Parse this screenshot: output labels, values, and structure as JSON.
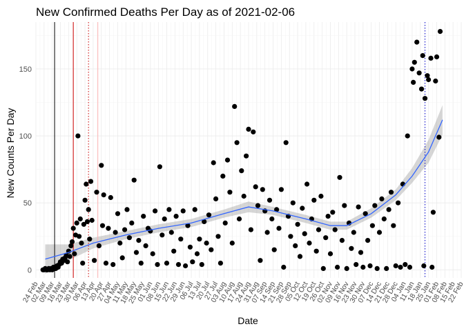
{
  "chart_data": {
    "type": "scatter",
    "title": "New Confirmed Deaths Per Day as of 2021-02-06",
    "xlabel": "Date",
    "ylabel": "New Counts Per Day",
    "x_range": [
      "2020-02-24",
      "2021-02-22"
    ],
    "ylim": [
      -6,
      185
    ],
    "yticks": [
      0,
      50,
      100,
      150
    ],
    "xtick_labels": [
      "24 Feb",
      "02 Mar",
      "09 Mar",
      "16 Mar",
      "23 Mar",
      "30 Mar",
      "06 Apr",
      "13 Apr",
      "20 Apr",
      "27 Apr",
      "04 May",
      "11 May",
      "18 May",
      "25 May",
      "01 Jun",
      "08 Jun",
      "15 Jun",
      "22 Jun",
      "29 Jun",
      "06 Jul",
      "13 Jul",
      "20 Jul",
      "27 Jul",
      "03 Aug",
      "10 Aug",
      "17 Aug",
      "24 Aug",
      "31 Aug",
      "07 Sep",
      "14 Sep",
      "21 Sep",
      "28 Sep",
      "05 Oct",
      "12 Oct",
      "19 Oct",
      "26 Oct",
      "02 Nov",
      "09 Nov",
      "16 Nov",
      "23 Nov",
      "30 Nov",
      "07 Dec",
      "14 Dec",
      "21 Dec",
      "28 Dec",
      "04 Jan",
      "11 Jan",
      "18 Jan",
      "25 Jan",
      "01 Feb",
      "08 Feb",
      "15 Feb",
      "22 Feb"
    ],
    "grid": true,
    "legend": "none",
    "point_color": "#000000",
    "smooth_color": "#3366ff",
    "band_color": "#999999",
    "vertical_lines": [
      {
        "date": "2020-03-11",
        "color": "#000000",
        "style": "solid"
      },
      {
        "date": "2020-03-27",
        "color": "#cc0000",
        "style": "solid"
      },
      {
        "date": "2020-04-09",
        "color": "#cc0000",
        "style": "dotted"
      },
      {
        "date": "2020-04-17",
        "color": "#ffb3b3",
        "style": "solid"
      },
      {
        "date": "2021-01-22",
        "color": "#0000cc",
        "style": "dotted"
      }
    ],
    "smooth": [
      {
        "x": "2020-03-03",
        "y": 8,
        "lo": -3,
        "hi": 19
      },
      {
        "x": "2020-03-23",
        "y": 13,
        "lo": 7,
        "hi": 19
      },
      {
        "x": "2020-04-13",
        "y": 20,
        "lo": 16,
        "hi": 24
      },
      {
        "x": "2020-05-11",
        "y": 26,
        "lo": 23,
        "hi": 29
      },
      {
        "x": "2020-06-08",
        "y": 31,
        "lo": 28,
        "hi": 34
      },
      {
        "x": "2020-07-06",
        "y": 35,
        "lo": 32,
        "hi": 38
      },
      {
        "x": "2020-08-03",
        "y": 42,
        "lo": 39,
        "hi": 45
      },
      {
        "x": "2020-08-24",
        "y": 47,
        "lo": 43,
        "hi": 51
      },
      {
        "x": "2020-09-14",
        "y": 44,
        "lo": 41,
        "hi": 47
      },
      {
        "x": "2020-10-12",
        "y": 38,
        "lo": 35,
        "hi": 41
      },
      {
        "x": "2020-11-02",
        "y": 33,
        "lo": 30,
        "hi": 36
      },
      {
        "x": "2020-11-16",
        "y": 33,
        "lo": 30,
        "hi": 36
      },
      {
        "x": "2020-12-07",
        "y": 42,
        "lo": 39,
        "hi": 46
      },
      {
        "x": "2020-12-28",
        "y": 56,
        "lo": 52,
        "hi": 60
      },
      {
        "x": "2021-01-11",
        "y": 70,
        "lo": 65,
        "hi": 76
      },
      {
        "x": "2021-01-25",
        "y": 88,
        "lo": 80,
        "hi": 97
      },
      {
        "x": "2021-02-06",
        "y": 112,
        "lo": 101,
        "hi": 123
      }
    ],
    "points": [
      {
        "x": "2020-03-01",
        "y": 0
      },
      {
        "x": "2020-03-02",
        "y": 0
      },
      {
        "x": "2020-03-03",
        "y": 1
      },
      {
        "x": "2020-03-04",
        "y": 0
      },
      {
        "x": "2020-03-05",
        "y": 0
      },
      {
        "x": "2020-03-06",
        "y": 1
      },
      {
        "x": "2020-03-07",
        "y": 0
      },
      {
        "x": "2020-03-08",
        "y": 1
      },
      {
        "x": "2020-03-09",
        "y": 0
      },
      {
        "x": "2020-03-10",
        "y": 2
      },
      {
        "x": "2020-03-11",
        "y": 1
      },
      {
        "x": "2020-03-12",
        "y": 1
      },
      {
        "x": "2020-03-13",
        "y": 3
      },
      {
        "x": "2020-03-14",
        "y": 2
      },
      {
        "x": "2020-03-15",
        "y": 4
      },
      {
        "x": "2020-03-16",
        "y": 6
      },
      {
        "x": "2020-03-17",
        "y": 5
      },
      {
        "x": "2020-03-18",
        "y": 8
      },
      {
        "x": "2020-03-19",
        "y": 7
      },
      {
        "x": "2020-03-20",
        "y": 9
      },
      {
        "x": "2020-03-21",
        "y": 11
      },
      {
        "x": "2020-03-22",
        "y": 6
      },
      {
        "x": "2020-03-23",
        "y": 14
      },
      {
        "x": "2020-03-24",
        "y": 10
      },
      {
        "x": "2020-03-25",
        "y": 18
      },
      {
        "x": "2020-03-26",
        "y": 21
      },
      {
        "x": "2020-03-27",
        "y": 31
      },
      {
        "x": "2020-03-28",
        "y": 12
      },
      {
        "x": "2020-03-29",
        "y": 26
      },
      {
        "x": "2020-03-30",
        "y": 35
      },
      {
        "x": "2020-03-31",
        "y": 100
      },
      {
        "x": "2020-04-01",
        "y": 25
      },
      {
        "x": "2020-04-02",
        "y": 38
      },
      {
        "x": "2020-04-03",
        "y": 20
      },
      {
        "x": "2020-04-04",
        "y": 5
      },
      {
        "x": "2020-04-05",
        "y": 34
      },
      {
        "x": "2020-04-06",
        "y": 52
      },
      {
        "x": "2020-04-07",
        "y": 64
      },
      {
        "x": "2020-04-08",
        "y": 36
      },
      {
        "x": "2020-04-09",
        "y": 45
      },
      {
        "x": "2020-04-10",
        "y": 23
      },
      {
        "x": "2020-04-11",
        "y": 66
      },
      {
        "x": "2020-04-12",
        "y": 37
      },
      {
        "x": "2020-04-14",
        "y": 7
      },
      {
        "x": "2020-04-16",
        "y": 58
      },
      {
        "x": "2020-04-18",
        "y": 18
      },
      {
        "x": "2020-04-20",
        "y": 78
      },
      {
        "x": "2020-04-21",
        "y": 33
      },
      {
        "x": "2020-04-22",
        "y": 56
      },
      {
        "x": "2020-04-24",
        "y": 5
      },
      {
        "x": "2020-04-26",
        "y": 31
      },
      {
        "x": "2020-04-28",
        "y": 54
      },
      {
        "x": "2020-04-30",
        "y": 4
      },
      {
        "x": "2020-05-02",
        "y": 28
      },
      {
        "x": "2020-05-04",
        "y": 42
      },
      {
        "x": "2020-05-06",
        "y": 20
      },
      {
        "x": "2020-05-08",
        "y": 9
      },
      {
        "x": "2020-05-10",
        "y": 30
      },
      {
        "x": "2020-05-12",
        "y": 45
      },
      {
        "x": "2020-05-14",
        "y": 24
      },
      {
        "x": "2020-05-16",
        "y": 35
      },
      {
        "x": "2020-05-18",
        "y": 67
      },
      {
        "x": "2020-05-20",
        "y": 13
      },
      {
        "x": "2020-05-22",
        "y": 22
      },
      {
        "x": "2020-05-24",
        "y": 5
      },
      {
        "x": "2020-05-26",
        "y": 40
      },
      {
        "x": "2020-05-28",
        "y": 18
      },
      {
        "x": "2020-05-30",
        "y": 31
      },
      {
        "x": "2020-06-01",
        "y": 29
      },
      {
        "x": "2020-06-03",
        "y": 12
      },
      {
        "x": "2020-06-05",
        "y": 44
      },
      {
        "x": "2020-06-07",
        "y": 4
      },
      {
        "x": "2020-06-09",
        "y": 77
      },
      {
        "x": "2020-06-11",
        "y": 26
      },
      {
        "x": "2020-06-13",
        "y": 38
      },
      {
        "x": "2020-06-15",
        "y": 5
      },
      {
        "x": "2020-06-17",
        "y": 45
      },
      {
        "x": "2020-06-19",
        "y": 28
      },
      {
        "x": "2020-06-21",
        "y": 14
      },
      {
        "x": "2020-06-23",
        "y": 40
      },
      {
        "x": "2020-06-25",
        "y": 4
      },
      {
        "x": "2020-06-27",
        "y": 23
      },
      {
        "x": "2020-06-29",
        "y": 44
      },
      {
        "x": "2020-07-01",
        "y": 3
      },
      {
        "x": "2020-07-03",
        "y": 33
      },
      {
        "x": "2020-07-05",
        "y": 17
      },
      {
        "x": "2020-07-07",
        "y": 6
      },
      {
        "x": "2020-07-09",
        "y": 45
      },
      {
        "x": "2020-07-11",
        "y": 12
      },
      {
        "x": "2020-07-13",
        "y": 23
      },
      {
        "x": "2020-07-15",
        "y": 4
      },
      {
        "x": "2020-07-17",
        "y": 36
      },
      {
        "x": "2020-07-19",
        "y": 20
      },
      {
        "x": "2020-07-21",
        "y": 41
      },
      {
        "x": "2020-07-23",
        "y": 15
      },
      {
        "x": "2020-07-25",
        "y": 80
      },
      {
        "x": "2020-07-27",
        "y": 53
      },
      {
        "x": "2020-07-29",
        "y": 25
      },
      {
        "x": "2020-07-31",
        "y": 5
      },
      {
        "x": "2020-08-02",
        "y": 70
      },
      {
        "x": "2020-08-04",
        "y": 35
      },
      {
        "x": "2020-08-06",
        "y": 82
      },
      {
        "x": "2020-08-08",
        "y": 58
      },
      {
        "x": "2020-08-10",
        "y": 20
      },
      {
        "x": "2020-08-12",
        "y": 122
      },
      {
        "x": "2020-08-14",
        "y": 95
      },
      {
        "x": "2020-08-16",
        "y": 38
      },
      {
        "x": "2020-08-18",
        "y": 74
      },
      {
        "x": "2020-08-20",
        "y": 55
      },
      {
        "x": "2020-08-22",
        "y": 85
      },
      {
        "x": "2020-08-24",
        "y": 105
      },
      {
        "x": "2020-08-26",
        "y": 30
      },
      {
        "x": "2020-08-28",
        "y": 103
      },
      {
        "x": "2020-08-30",
        "y": 62
      },
      {
        "x": "2020-09-01",
        "y": 48
      },
      {
        "x": "2020-09-03",
        "y": 7
      },
      {
        "x": "2020-09-05",
        "y": 60
      },
      {
        "x": "2020-09-07",
        "y": 44
      },
      {
        "x": "2020-09-09",
        "y": 28
      },
      {
        "x": "2020-09-11",
        "y": 52
      },
      {
        "x": "2020-09-13",
        "y": 38
      },
      {
        "x": "2020-09-15",
        "y": 15
      },
      {
        "x": "2020-09-17",
        "y": 45
      },
      {
        "x": "2020-09-19",
        "y": 31
      },
      {
        "x": "2020-09-21",
        "y": 60
      },
      {
        "x": "2020-09-23",
        "y": 2
      },
      {
        "x": "2020-09-25",
        "y": 95
      },
      {
        "x": "2020-09-27",
        "y": 40
      },
      {
        "x": "2020-09-29",
        "y": 25
      },
      {
        "x": "2020-10-01",
        "y": 50
      },
      {
        "x": "2020-10-03",
        "y": 18
      },
      {
        "x": "2020-10-05",
        "y": 34
      },
      {
        "x": "2020-10-07",
        "y": 10
      },
      {
        "x": "2020-10-09",
        "y": 46
      },
      {
        "x": "2020-10-11",
        "y": 27
      },
      {
        "x": "2020-10-13",
        "y": 64
      },
      {
        "x": "2020-10-15",
        "y": 20
      },
      {
        "x": "2020-10-17",
        "y": 38
      },
      {
        "x": "2020-10-19",
        "y": 52
      },
      {
        "x": "2020-10-21",
        "y": 14
      },
      {
        "x": "2020-10-23",
        "y": 30
      },
      {
        "x": "2020-10-25",
        "y": 55
      },
      {
        "x": "2020-10-27",
        "y": 1
      },
      {
        "x": "2020-10-29",
        "y": 24
      },
      {
        "x": "2020-10-31",
        "y": 40
      },
      {
        "x": "2020-11-02",
        "y": 12
      },
      {
        "x": "2020-11-04",
        "y": 43
      },
      {
        "x": "2020-11-06",
        "y": 30
      },
      {
        "x": "2020-11-08",
        "y": 2
      },
      {
        "x": "2020-11-10",
        "y": 69
      },
      {
        "x": "2020-11-12",
        "y": 22
      },
      {
        "x": "2020-11-14",
        "y": 48
      },
      {
        "x": "2020-11-16",
        "y": 1
      },
      {
        "x": "2020-11-18",
        "y": 35
      },
      {
        "x": "2020-11-20",
        "y": 16
      },
      {
        "x": "2020-11-22",
        "y": 28
      },
      {
        "x": "2020-11-24",
        "y": 4
      },
      {
        "x": "2020-11-26",
        "y": 47
      },
      {
        "x": "2020-11-28",
        "y": 13
      },
      {
        "x": "2020-11-30",
        "y": 2
      },
      {
        "x": "2020-12-02",
        "y": 42
      },
      {
        "x": "2020-12-04",
        "y": 22
      },
      {
        "x": "2020-12-06",
        "y": 3
      },
      {
        "x": "2020-12-08",
        "y": 33
      },
      {
        "x": "2020-12-10",
        "y": 48
      },
      {
        "x": "2020-12-12",
        "y": 1
      },
      {
        "x": "2020-12-14",
        "y": 28
      },
      {
        "x": "2020-12-16",
        "y": 53
      },
      {
        "x": "2020-12-18",
        "y": 38
      },
      {
        "x": "2020-12-20",
        "y": 1
      },
      {
        "x": "2020-12-22",
        "y": 45
      },
      {
        "x": "2020-12-24",
        "y": 58
      },
      {
        "x": "2020-12-26",
        "y": 33
      },
      {
        "x": "2020-12-28",
        "y": 3
      },
      {
        "x": "2020-12-30",
        "y": 50
      },
      {
        "x": "2021-01-01",
        "y": 2
      },
      {
        "x": "2021-01-03",
        "y": 64
      },
      {
        "x": "2021-01-05",
        "y": 4
      },
      {
        "x": "2021-01-07",
        "y": 100
      },
      {
        "x": "2021-01-09",
        "y": 2
      },
      {
        "x": "2021-01-11",
        "y": 150
      },
      {
        "x": "2021-01-12",
        "y": 140
      },
      {
        "x": "2021-01-13",
        "y": 155
      },
      {
        "x": "2021-01-15",
        "y": 170
      },
      {
        "x": "2021-01-17",
        "y": 147
      },
      {
        "x": "2021-01-19",
        "y": 135
      },
      {
        "x": "2021-01-20",
        "y": 160
      },
      {
        "x": "2021-01-21",
        "y": 3
      },
      {
        "x": "2021-01-22",
        "y": 128
      },
      {
        "x": "2021-01-24",
        "y": 145
      },
      {
        "x": "2021-01-25",
        "y": 142
      },
      {
        "x": "2021-01-27",
        "y": 158
      },
      {
        "x": "2021-01-28",
        "y": 2
      },
      {
        "x": "2021-01-29",
        "y": 43
      },
      {
        "x": "2021-01-31",
        "y": 141
      },
      {
        "x": "2021-02-01",
        "y": 159
      },
      {
        "x": "2021-02-03",
        "y": 99
      },
      {
        "x": "2021-02-04",
        "y": 178
      }
    ]
  }
}
